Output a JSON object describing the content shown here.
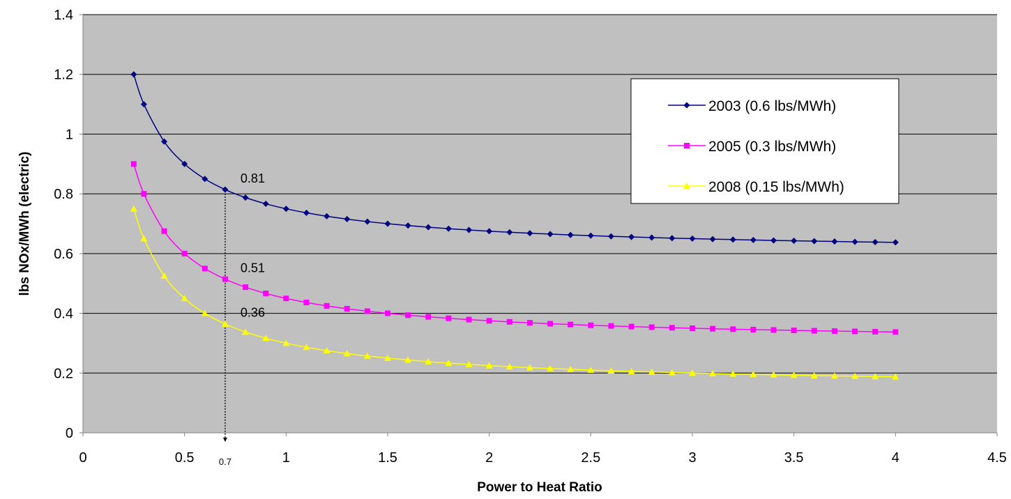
{
  "chart_data": {
    "type": "line",
    "title": "",
    "xlabel": "Power to Heat Ratio",
    "ylabel": "lbs NOx/MWh (electric)",
    "xlim": [
      0,
      4.5
    ],
    "ylim": [
      0,
      1.4
    ],
    "x_ticks": [
      "0",
      "0.5",
      "1",
      "1.5",
      "2",
      "2.5",
      "3",
      "3.5",
      "4",
      "4.5"
    ],
    "y_ticks": [
      "0",
      "0.2",
      "0.4",
      "0.6",
      "0.8",
      "1",
      "1.2",
      "1.4"
    ],
    "grid": "horizontal",
    "plot_background": "#c0c0c0",
    "legend_position": "top-right",
    "series": [
      {
        "name": "2003 (0.6 lbs/MWh)",
        "color": "#000080",
        "marker": "diamond",
        "base": 0.6
      },
      {
        "name": "2005 (0.3 lbs/MWh)",
        "color": "#ff00ff",
        "marker": "square",
        "base": 0.3
      },
      {
        "name": "2008 (0.15 lbs/MWh)",
        "color": "#ffff00",
        "marker": "triangle",
        "base": 0.15
      }
    ],
    "x": [
      0.25,
      0.3,
      0.4,
      0.5,
      0.6,
      0.7,
      0.8,
      0.9,
      1.0,
      1.1,
      1.2,
      1.3,
      1.4,
      1.5,
      1.6,
      1.7,
      1.8,
      1.9,
      2.0,
      2.1,
      2.2,
      2.3,
      2.4,
      2.5,
      2.6,
      2.7,
      2.8,
      2.9,
      3.0,
      3.1,
      3.2,
      3.3,
      3.4,
      3.5,
      3.6,
      3.7,
      3.8,
      3.9,
      4.0
    ],
    "annotations": [
      {
        "text": "0.81",
        "x": 0.7,
        "y": 0.81
      },
      {
        "text": "0.51",
        "x": 0.7,
        "y": 0.51
      },
      {
        "text": "0.36",
        "x": 0.7,
        "y": 0.36
      }
    ],
    "marker_line": {
      "x": 0.7,
      "label": "0.7"
    }
  }
}
